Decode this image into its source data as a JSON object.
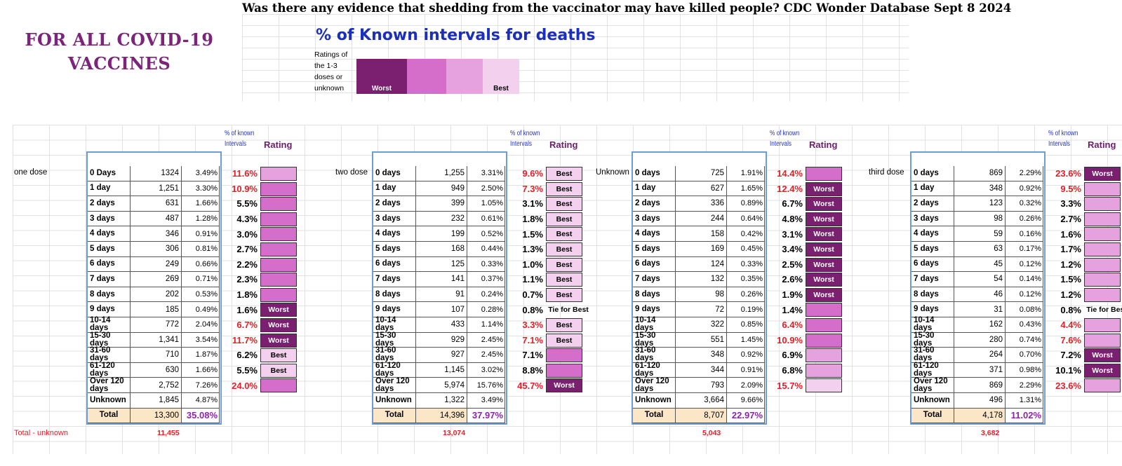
{
  "header": {
    "title": "Was there any evidence that shedding from  the vaccinator may have killed people?  CDC Wonder Database Sept 8 2024",
    "side_label": "FOR ALL COVID-19 VACCINES"
  },
  "legend": {
    "title": "% of Known  intervals for deaths",
    "note": "Ratings of the 1-3 doses or unknown",
    "swatches": [
      {
        "label": "Worst",
        "color": "#7b2070",
        "text_color": "#ffffff"
      },
      {
        "label": "",
        "color": "#d56ecb",
        "text_color": "#000000"
      },
      {
        "label": "",
        "color": "#e6a2de",
        "text_color": "#000000"
      },
      {
        "label": "Best",
        "color": "#f3d1ee",
        "text_color": "#000000"
      }
    ]
  },
  "column_headers": {
    "pct_known": [
      "% of known",
      "Intervals"
    ],
    "rating": "Rating"
  },
  "labels": {
    "total": "Total",
    "total_minus_unknown": "Total - unknown"
  },
  "colors": {
    "worst": "#7b2070",
    "level2": "#d56ecb",
    "level3": "#e6a2de",
    "best": "#f3d1ee",
    "red_text": "#e3202a",
    "total_bg": "#fbe6c8",
    "table_border": "#6f9bd6"
  },
  "panels": [
    {
      "group": "one dose",
      "rows": [
        {
          "interval": "0 Days",
          "count": "1324",
          "pct": "3.49%",
          "known": "11.6%",
          "red": true,
          "rating": "",
          "level": 3
        },
        {
          "interval": "1 day",
          "count": "1,251",
          "pct": "3.30%",
          "known": "10.9%",
          "red": true,
          "rating": "",
          "level": 2
        },
        {
          "interval": "2 days",
          "count": "631",
          "pct": "1.66%",
          "known": "5.5%",
          "red": false,
          "rating": "",
          "level": 2
        },
        {
          "interval": "3 days",
          "count": "487",
          "pct": "1.28%",
          "known": "4.3%",
          "red": false,
          "rating": "",
          "level": 2
        },
        {
          "interval": "4 days",
          "count": "346",
          "pct": "0.91%",
          "known": "3.0%",
          "red": false,
          "rating": "",
          "level": 2
        },
        {
          "interval": "5 days",
          "count": "306",
          "pct": "0.81%",
          "known": "2.7%",
          "red": false,
          "rating": "",
          "level": 2
        },
        {
          "interval": "6 days",
          "count": "249",
          "pct": "0.66%",
          "known": "2.2%",
          "red": false,
          "rating": "",
          "level": 2
        },
        {
          "interval": "7 days",
          "count": "269",
          "pct": "0.71%",
          "known": "2.3%",
          "red": false,
          "rating": "",
          "level": 2
        },
        {
          "interval": "8 days",
          "count": "202",
          "pct": "0.53%",
          "known": "1.8%",
          "red": false,
          "rating": "",
          "level": 2
        },
        {
          "interval": "9 days",
          "count": "185",
          "pct": "0.49%",
          "known": "1.6%",
          "red": false,
          "rating": "Worst",
          "level": 1
        },
        {
          "interval": "10-14 days",
          "count": "772",
          "pct": "2.04%",
          "known": "6.7%",
          "red": true,
          "rating": "Worst",
          "level": 1
        },
        {
          "interval": "15-30 days",
          "count": "1,341",
          "pct": "3.54%",
          "known": "11.7%",
          "red": true,
          "rating": "Worst",
          "level": 1
        },
        {
          "interval": "31-60 days",
          "count": "710",
          "pct": "1.87%",
          "known": "6.2%",
          "red": false,
          "rating": "Best",
          "level": 4
        },
        {
          "interval": "61-120 days",
          "count": "630",
          "pct": "1.66%",
          "known": "5.5%",
          "red": false,
          "rating": "Best",
          "level": 4
        },
        {
          "interval": "Over 120 days",
          "count": "2,752",
          "pct": "7.26%",
          "known": "24.0%",
          "red": true,
          "rating": "",
          "level": 2
        },
        {
          "interval": "Unknown",
          "count": "1,845",
          "pct": "4.87%",
          "known": "",
          "red": false,
          "rating": "",
          "level": 0
        }
      ],
      "total_count": "13,300",
      "total_pct": "35.08%",
      "total_minus_unknown": "11,455"
    },
    {
      "group": "two dose",
      "rows": [
        {
          "interval": "0 days",
          "count": "1,255",
          "pct": "3.31%",
          "known": "9.6%",
          "red": true,
          "rating": "Best",
          "level": 4
        },
        {
          "interval": "1 day",
          "count": "949",
          "pct": "2.50%",
          "known": "7.3%",
          "red": true,
          "rating": "Best",
          "level": 4
        },
        {
          "interval": "2 days",
          "count": "399",
          "pct": "1.05%",
          "known": "3.1%",
          "red": false,
          "rating": "Best",
          "level": 4
        },
        {
          "interval": "3 days",
          "count": "232",
          "pct": "0.61%",
          "known": "1.8%",
          "red": false,
          "rating": "Best",
          "level": 4
        },
        {
          "interval": "4 days",
          "count": "199",
          "pct": "0.52%",
          "known": "1.5%",
          "red": false,
          "rating": "Best",
          "level": 4
        },
        {
          "interval": "5 days",
          "count": "168",
          "pct": "0.44%",
          "known": "1.3%",
          "red": false,
          "rating": "Best",
          "level": 4
        },
        {
          "interval": "6 days",
          "count": "125",
          "pct": "0.33%",
          "known": "1.0%",
          "red": false,
          "rating": "Best",
          "level": 4
        },
        {
          "interval": "7 days",
          "count": "141",
          "pct": "0.37%",
          "known": "1.1%",
          "red": false,
          "rating": "Best",
          "level": 4
        },
        {
          "interval": "8 days",
          "count": "91",
          "pct": "0.24%",
          "known": "0.7%",
          "red": false,
          "rating": "Best",
          "level": 4
        },
        {
          "interval": "9 days",
          "count": "107",
          "pct": "0.28%",
          "known": "0.8%",
          "red": false,
          "rating": "Tie for Best",
          "level": 0
        },
        {
          "interval": "10-14 days",
          "count": "433",
          "pct": "1.14%",
          "known": "3.3%",
          "red": true,
          "rating": "Best",
          "level": 4
        },
        {
          "interval": "15-30 days",
          "count": "929",
          "pct": "2.45%",
          "known": "7.1%",
          "red": true,
          "rating": "Best",
          "level": 4
        },
        {
          "interval": "31-60 days",
          "count": "927",
          "pct": "2.45%",
          "known": "7.1%",
          "red": false,
          "rating": "",
          "level": 2
        },
        {
          "interval": "61-120 days",
          "count": "1,145",
          "pct": "3.02%",
          "known": "8.8%",
          "red": false,
          "rating": "",
          "level": 2
        },
        {
          "interval": "Over 120 days",
          "count": "5,974",
          "pct": "15.76%",
          "known": "45.7%",
          "red": true,
          "rating": "Worst",
          "level": 1
        },
        {
          "interval": "Unknown",
          "count": "1,322",
          "pct": "3.49%",
          "known": "",
          "red": false,
          "rating": "",
          "level": 0
        }
      ],
      "total_count": "14,396",
      "total_pct": "37.97%",
      "total_minus_unknown": "13,074"
    },
    {
      "group": "Unknown",
      "rows": [
        {
          "interval": "0 days",
          "count": "725",
          "pct": "1.91%",
          "known": "14.4%",
          "red": true,
          "rating": "",
          "level": 2
        },
        {
          "interval": "1 day",
          "count": "627",
          "pct": "1.65%",
          "known": "12.4%",
          "red": true,
          "rating": "Worst",
          "level": 1
        },
        {
          "interval": "2 days",
          "count": "336",
          "pct": "0.89%",
          "known": "6.7%",
          "red": false,
          "rating": "Worst",
          "level": 1
        },
        {
          "interval": "3 days",
          "count": "244",
          "pct": "0.64%",
          "known": "4.8%",
          "red": false,
          "rating": "Worst",
          "level": 1
        },
        {
          "interval": "4 days",
          "count": "158",
          "pct": "0.42%",
          "known": "3.1%",
          "red": false,
          "rating": "Worst",
          "level": 1
        },
        {
          "interval": "5 days",
          "count": "169",
          "pct": "0.45%",
          "known": "3.4%",
          "red": false,
          "rating": "Worst",
          "level": 1
        },
        {
          "interval": "6 days",
          "count": "124",
          "pct": "0.33%",
          "known": "2.5%",
          "red": false,
          "rating": "Worst",
          "level": 1
        },
        {
          "interval": "7 days",
          "count": "132",
          "pct": "0.35%",
          "known": "2.6%",
          "red": false,
          "rating": "Worst",
          "level": 1
        },
        {
          "interval": "8 days",
          "count": "98",
          "pct": "0.26%",
          "known": "1.9%",
          "red": false,
          "rating": "Worst",
          "level": 1
        },
        {
          "interval": "9 days",
          "count": "72",
          "pct": "0.19%",
          "known": "1.4%",
          "red": false,
          "rating": "",
          "level": 2
        },
        {
          "interval": "10-14 days",
          "count": "322",
          "pct": "0.85%",
          "known": "6.4%",
          "red": true,
          "rating": "",
          "level": 2
        },
        {
          "interval": "15-30 days",
          "count": "551",
          "pct": "1.45%",
          "known": "10.9%",
          "red": true,
          "rating": "",
          "level": 2
        },
        {
          "interval": "31-60 days",
          "count": "348",
          "pct": "0.92%",
          "known": "6.9%",
          "red": false,
          "rating": "",
          "level": 3
        },
        {
          "interval": "61-120 days",
          "count": "344",
          "pct": "0.91%",
          "known": "6.8%",
          "red": false,
          "rating": "",
          "level": 3
        },
        {
          "interval": "Over 120 days",
          "count": "793",
          "pct": "2.09%",
          "known": "15.7%",
          "red": true,
          "rating": "",
          "level": 4
        },
        {
          "interval": "Unknown",
          "count": "3,664",
          "pct": "9.66%",
          "known": "",
          "red": false,
          "rating": "",
          "level": 0
        }
      ],
      "total_count": "8,707",
      "total_pct": "22.97%",
      "total_minus_unknown": "5,043"
    },
    {
      "group": "third dose",
      "rows": [
        {
          "interval": "0 days",
          "count": "869",
          "pct": "2.29%",
          "known": "23.6%",
          "red": true,
          "rating": "Worst",
          "level": 1
        },
        {
          "interval": "1 day",
          "count": "348",
          "pct": "0.92%",
          "known": "9.5%",
          "red": true,
          "rating": "",
          "level": 3
        },
        {
          "interval": "2 days",
          "count": "123",
          "pct": "0.32%",
          "known": "3.3%",
          "red": false,
          "rating": "",
          "level": 3
        },
        {
          "interval": "3 days",
          "count": "98",
          "pct": "0.26%",
          "known": "2.7%",
          "red": false,
          "rating": "",
          "level": 3
        },
        {
          "interval": "4 days",
          "count": "59",
          "pct": "0.16%",
          "known": "1.6%",
          "red": false,
          "rating": "",
          "level": 3
        },
        {
          "interval": "5 days",
          "count": "63",
          "pct": "0.17%",
          "known": "1.7%",
          "red": false,
          "rating": "",
          "level": 3
        },
        {
          "interval": "6 days",
          "count": "45",
          "pct": "0.12%",
          "known": "1.2%",
          "red": false,
          "rating": "",
          "level": 3
        },
        {
          "interval": "7 days",
          "count": "54",
          "pct": "0.14%",
          "known": "1.5%",
          "red": false,
          "rating": "",
          "level": 3
        },
        {
          "interval": "8 days",
          "count": "46",
          "pct": "0.12%",
          "known": "1.2%",
          "red": false,
          "rating": "",
          "level": 3
        },
        {
          "interval": "9 days",
          "count": "31",
          "pct": "0.08%",
          "known": "0.8%",
          "red": false,
          "rating": "Tie for Best",
          "level": 0
        },
        {
          "interval": "10-14 days",
          "count": "162",
          "pct": "0.43%",
          "known": "4.4%",
          "red": true,
          "rating": "",
          "level": 3
        },
        {
          "interval": "15-30 days",
          "count": "280",
          "pct": "0.74%",
          "known": "7.6%",
          "red": true,
          "rating": "",
          "level": 3
        },
        {
          "interval": "31-60 days",
          "count": "264",
          "pct": "0.70%",
          "known": "7.2%",
          "red": false,
          "rating": "Worst",
          "level": 1
        },
        {
          "interval": "61-120 days",
          "count": "371",
          "pct": "0.98%",
          "known": "10.1%",
          "red": false,
          "rating": "Worst",
          "level": 1
        },
        {
          "interval": "Over 120 days",
          "count": "869",
          "pct": "2.29%",
          "known": "23.6%",
          "red": true,
          "rating": "",
          "level": 3
        },
        {
          "interval": "Unknown",
          "count": "496",
          "pct": "1.31%",
          "known": "",
          "red": false,
          "rating": "",
          "level": 0
        }
      ],
      "total_count": "4,178",
      "total_pct": "11.02%",
      "total_minus_unknown": "3,682"
    }
  ]
}
